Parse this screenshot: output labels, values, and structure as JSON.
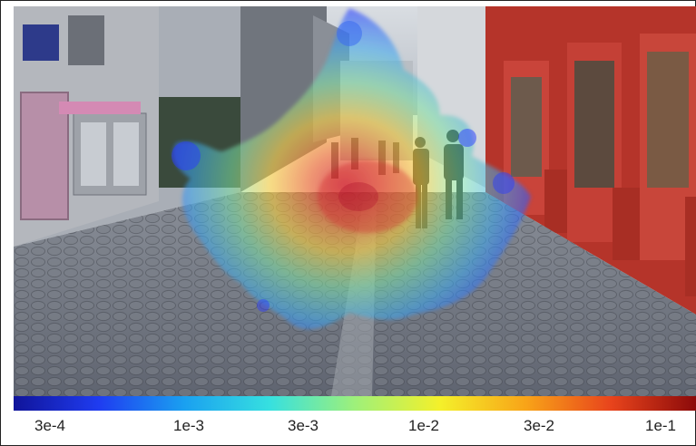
{
  "figure": {
    "description_layers": [
      "street-photo",
      "heatmap-overlay"
    ]
  },
  "colorbar": {
    "scale": "log",
    "stops": [
      "#10149a",
      "#1f3cf0",
      "#1aa0f0",
      "#36e0e0",
      "#9ef07a",
      "#f4f02a",
      "#f8a418",
      "#e8441c",
      "#8c0a0a"
    ],
    "ticks": [
      "3e-4",
      "1e-3",
      "3e-3",
      "1e-2",
      "3e-2",
      "1e-1"
    ]
  },
  "colors": {
    "heat_low": "#2a3cff",
    "heat_mid": "#ffd42a",
    "heat_high": "#d0202a"
  }
}
